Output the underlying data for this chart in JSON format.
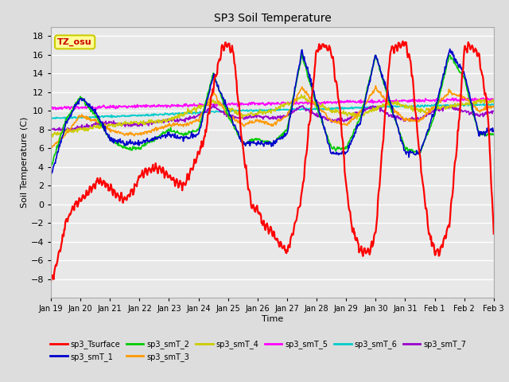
{
  "title": "SP3 Soil Temperature",
  "xlabel": "Time",
  "ylabel": "Soil Temperature (C)",
  "ylim": [
    -10,
    19
  ],
  "yticks": [
    -8,
    -6,
    -4,
    -2,
    0,
    2,
    4,
    6,
    8,
    10,
    12,
    14,
    16,
    18
  ],
  "annotation_text": "TZ_osu",
  "annotation_color": "#cc0000",
  "annotation_bg": "#ffff99",
  "annotation_edge": "#cccc00",
  "x_labels": [
    "Jan 19",
    "Jan 20",
    "Jan 21",
    "Jan 22",
    "Jan 23",
    "Jan 24",
    "Jan 25",
    "Jan 26",
    "Jan 27",
    "Jan 28",
    "Jan 29",
    "Jan 30",
    "Jan 31",
    "Feb 1",
    "Feb 2",
    "Feb 3"
  ],
  "legend_entries": [
    {
      "label": "sp3_Tsurface",
      "color": "#ff0000"
    },
    {
      "label": "sp3_smT_1",
      "color": "#0000cc"
    },
    {
      "label": "sp3_smT_2",
      "color": "#00cc00"
    },
    {
      "label": "sp3_smT_3",
      "color": "#ff9900"
    },
    {
      "label": "sp3_smT_4",
      "color": "#cccc00"
    },
    {
      "label": "sp3_smT_5",
      "color": "#ff00ff"
    },
    {
      "label": "sp3_smT_6",
      "color": "#00cccc"
    },
    {
      "label": "sp3_smT_7",
      "color": "#9900cc"
    }
  ],
  "fig_bg": "#dddddd",
  "plot_bg": "#e8e8e8"
}
